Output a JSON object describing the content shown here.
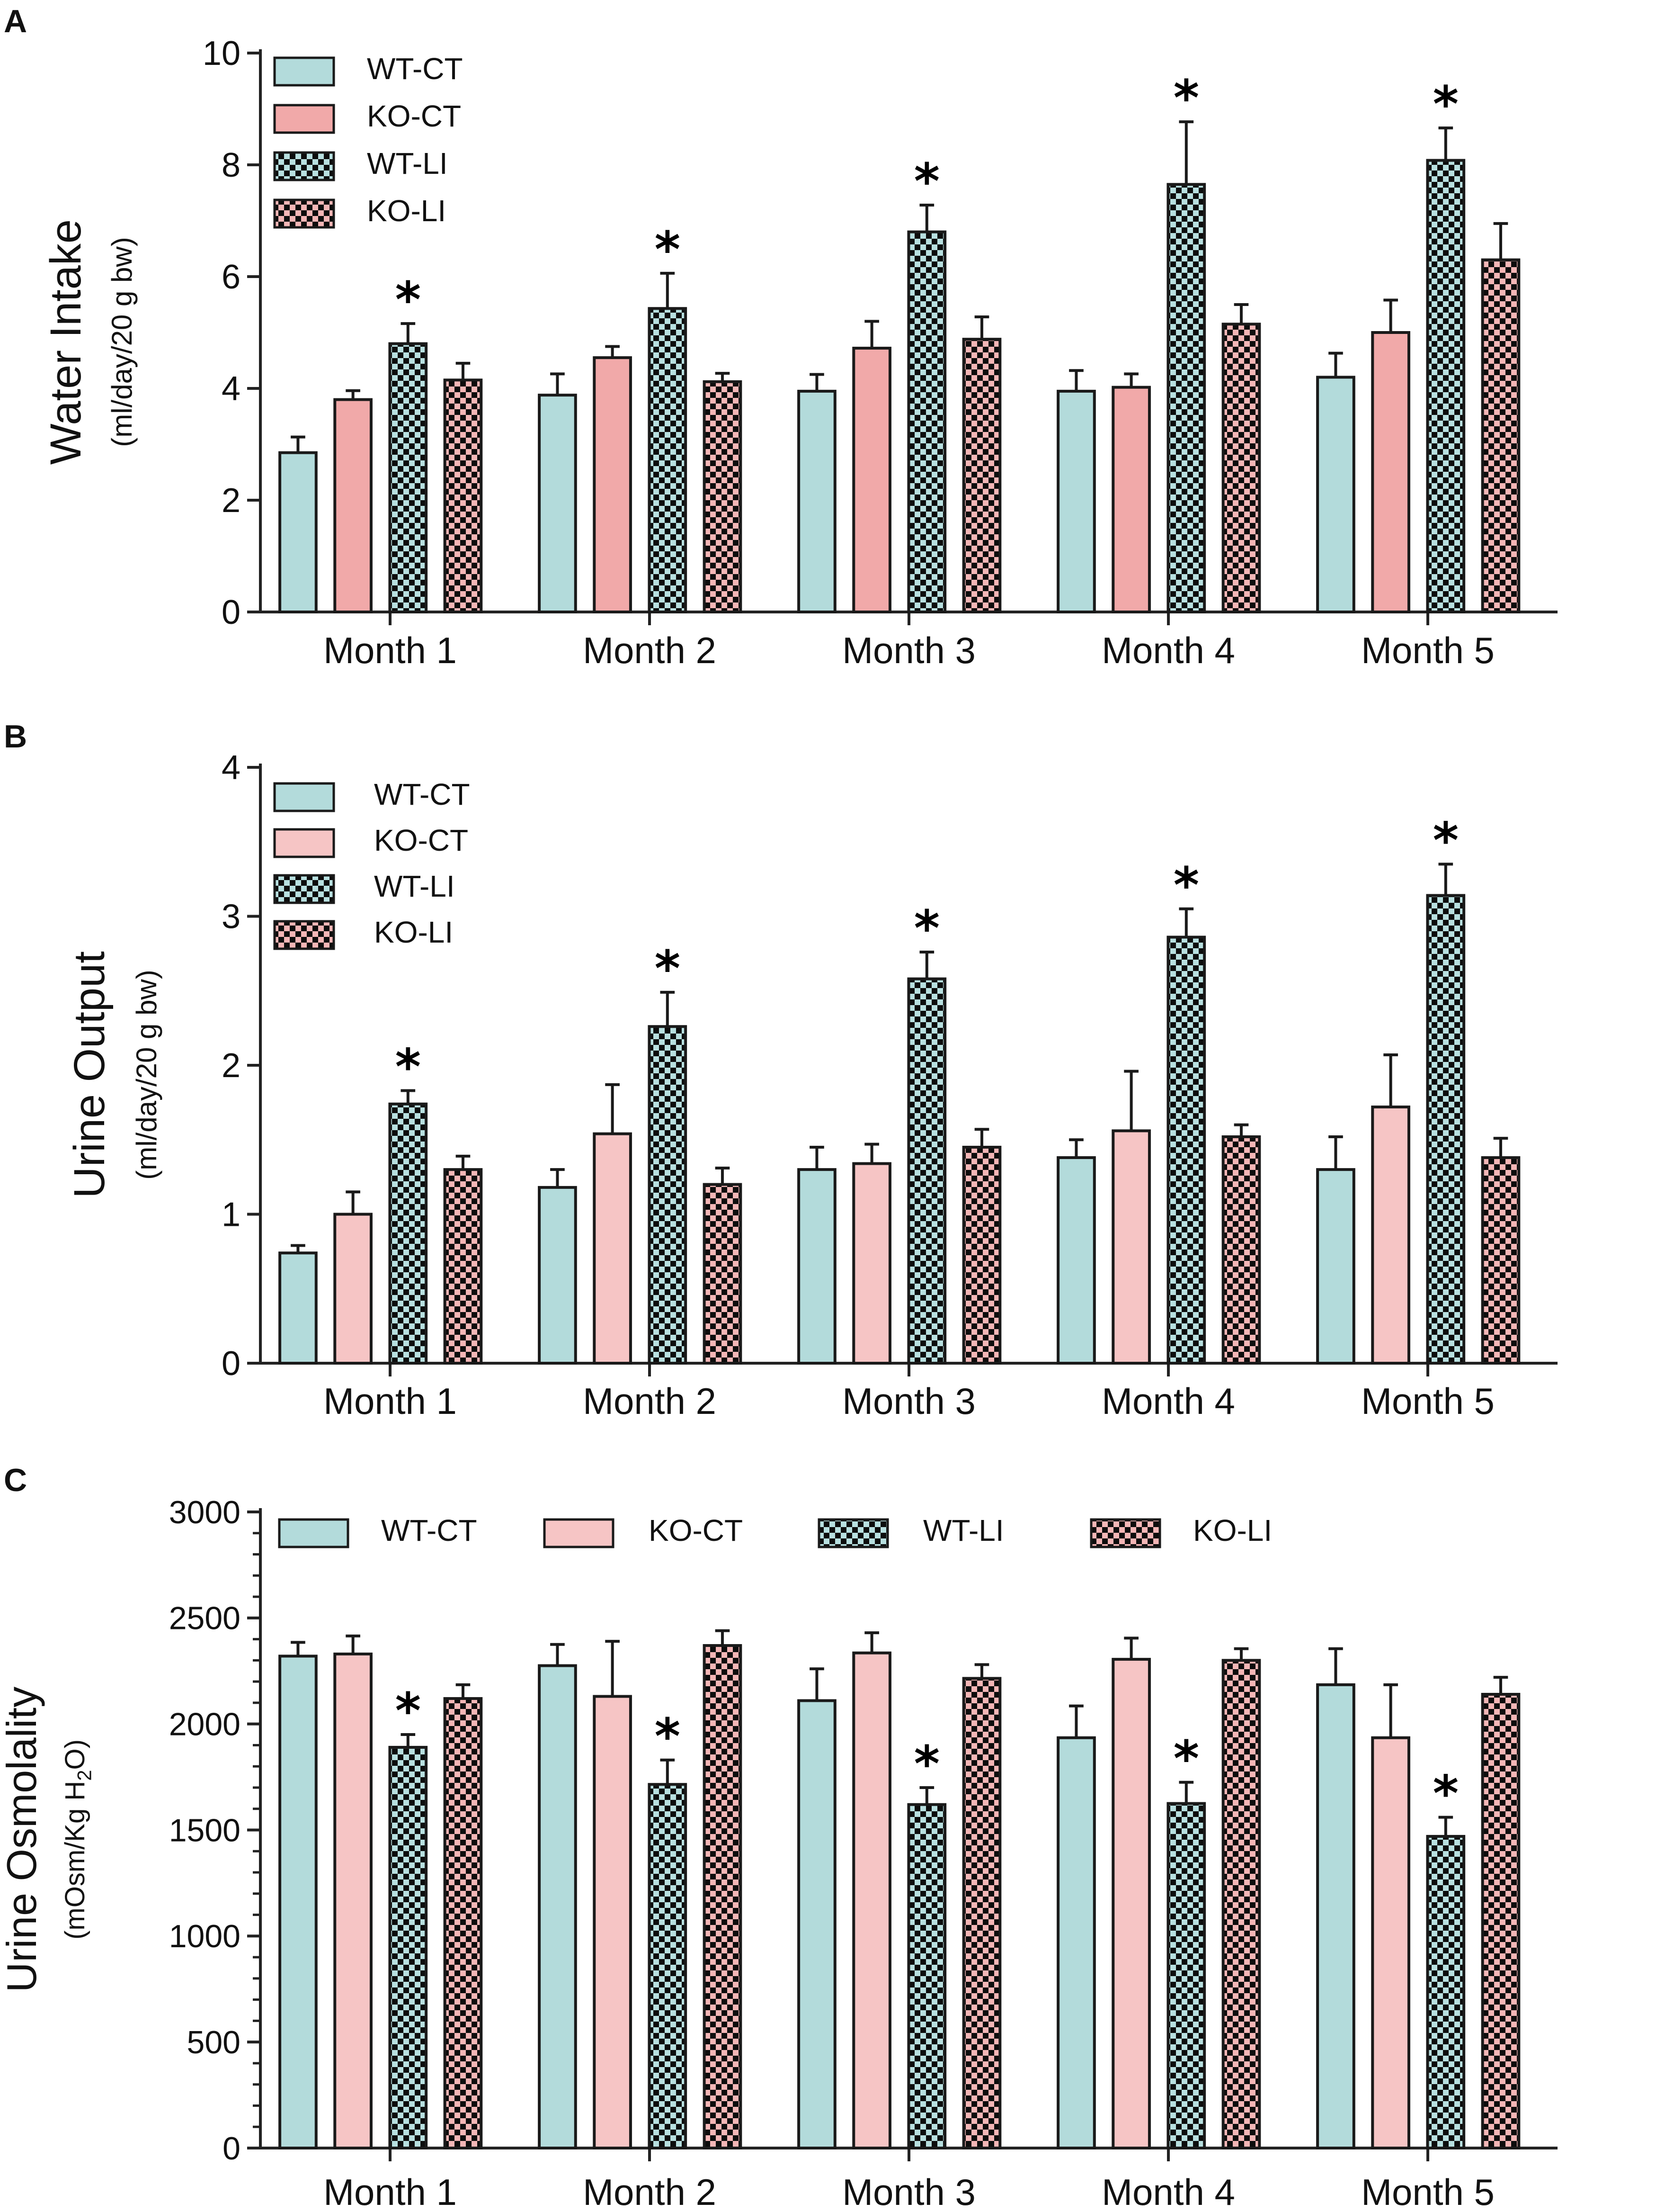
{
  "figure": {
    "panel_labels": [
      "A",
      "B",
      "C"
    ]
  },
  "colors": {
    "wt_ct": "#b3dbdb",
    "ko_ct": "#f1a9a9",
    "ko_ct_light": "#f6c5c5",
    "check_dark": "#0d0d0d",
    "axis": "#222222",
    "wt_li_light": "#b8e0e0",
    "ko_li_light": "#f4b6b6"
  },
  "icons": {
    "significance": "asterisk"
  },
  "chart_data": [
    {
      "type": "bar",
      "title": "",
      "ylabel": "Water Intake",
      "ysublabel": "(ml/day/20 g bw)",
      "xlabel": "",
      "categories": [
        "Month 1",
        "Month 2",
        "Month 3",
        "Month 4",
        "Month 5"
      ],
      "ylim": [
        0,
        10
      ],
      "yticks": [
        "0",
        "2",
        "4",
        "6",
        "8",
        "10"
      ],
      "legend": "top-left, vertical",
      "series": [
        {
          "name": "WT-CT",
          "pattern": "solid-teal",
          "values": [
            2.85,
            3.88,
            3.95,
            3.95,
            4.2
          ],
          "errors": [
            0.28,
            0.38,
            0.3,
            0.37,
            0.43
          ],
          "significant": [
            false,
            false,
            false,
            false,
            false
          ]
        },
        {
          "name": "KO-CT",
          "pattern": "solid-pink",
          "values": [
            3.8,
            4.55,
            4.72,
            4.02,
            5.0
          ],
          "errors": [
            0.16,
            0.2,
            0.48,
            0.24,
            0.58
          ],
          "significant": [
            false,
            false,
            false,
            false,
            false
          ]
        },
        {
          "name": "WT-LI",
          "pattern": "check-teal",
          "values": [
            4.8,
            5.43,
            6.8,
            7.65,
            8.08
          ],
          "errors": [
            0.36,
            0.63,
            0.48,
            1.12,
            0.58
          ],
          "significant": [
            true,
            true,
            true,
            true,
            true
          ]
        },
        {
          "name": "KO-LI",
          "pattern": "check-pink",
          "values": [
            4.15,
            4.12,
            4.88,
            5.15,
            6.3
          ],
          "errors": [
            0.3,
            0.15,
            0.4,
            0.35,
            0.65
          ],
          "significant": [
            false,
            false,
            false,
            false,
            false
          ]
        }
      ]
    },
    {
      "type": "bar",
      "title": "",
      "ylabel": "Urine Output",
      "ysublabel": "(ml/day/20 g bw)",
      "xlabel": "",
      "categories": [
        "Month 1",
        "Month 2",
        "Month 3",
        "Month 4",
        "Month 5"
      ],
      "ylim": [
        0,
        4
      ],
      "yticks": [
        "0",
        "1",
        "2",
        "3",
        "4"
      ],
      "legend": "top-left, vertical",
      "series": [
        {
          "name": "WT-CT",
          "pattern": "solid-teal",
          "values": [
            0.74,
            1.18,
            1.3,
            1.38,
            1.3
          ],
          "errors": [
            0.05,
            0.12,
            0.15,
            0.12,
            0.22
          ],
          "significant": [
            false,
            false,
            false,
            false,
            false
          ]
        },
        {
          "name": "KO-CT",
          "pattern": "solid-lightpink",
          "values": [
            1.0,
            1.54,
            1.34,
            1.56,
            1.72
          ],
          "errors": [
            0.15,
            0.33,
            0.13,
            0.4,
            0.35
          ],
          "significant": [
            false,
            false,
            false,
            false,
            false
          ]
        },
        {
          "name": "WT-LI",
          "pattern": "check-teal",
          "values": [
            1.74,
            2.26,
            2.58,
            2.86,
            3.14
          ],
          "errors": [
            0.09,
            0.23,
            0.18,
            0.19,
            0.21
          ],
          "significant": [
            true,
            true,
            true,
            true,
            true
          ]
        },
        {
          "name": "KO-LI",
          "pattern": "check-pink",
          "values": [
            1.3,
            1.2,
            1.45,
            1.52,
            1.38
          ],
          "errors": [
            0.09,
            0.11,
            0.12,
            0.08,
            0.13
          ],
          "significant": [
            false,
            false,
            false,
            false,
            false
          ]
        }
      ]
    },
    {
      "type": "bar",
      "title": "",
      "ylabel": "Urine Osmolality",
      "ysublabel_pre": "(mOsm/Kg H",
      "ysublabel_sub": "2",
      "ysublabel_post": "O)",
      "xlabel": "",
      "categories": [
        "Month 1",
        "Month 2",
        "Month 3",
        "Month 4",
        "Month 5"
      ],
      "ylim": [
        0,
        3000
      ],
      "yticks": [
        "0",
        "500",
        "1000",
        "1500",
        "2000",
        "2500",
        "3000"
      ],
      "legend": "top, horizontal",
      "series": [
        {
          "name": "WT-CT",
          "pattern": "solid-teal",
          "values": [
            2320,
            2275,
            2110,
            1935,
            2185
          ],
          "errors": [
            65,
            100,
            150,
            150,
            170
          ],
          "significant": [
            false,
            false,
            false,
            false,
            false
          ]
        },
        {
          "name": "KO-CT",
          "pattern": "solid-lightpink",
          "values": [
            2330,
            2130,
            2335,
            2305,
            1935
          ],
          "errors": [
            85,
            260,
            95,
            100,
            250
          ],
          "significant": [
            false,
            false,
            false,
            false,
            false
          ]
        },
        {
          "name": "WT-LI",
          "pattern": "check-teal",
          "values": [
            1890,
            1715,
            1620,
            1625,
            1470
          ],
          "errors": [
            60,
            115,
            80,
            100,
            90
          ],
          "significant": [
            true,
            true,
            true,
            true,
            true
          ]
        },
        {
          "name": "KO-LI",
          "pattern": "check-pink",
          "values": [
            2120,
            2370,
            2215,
            2300,
            2140
          ],
          "errors": [
            65,
            70,
            65,
            55,
            80
          ],
          "significant": [
            false,
            false,
            false,
            false,
            false
          ]
        }
      ]
    }
  ]
}
